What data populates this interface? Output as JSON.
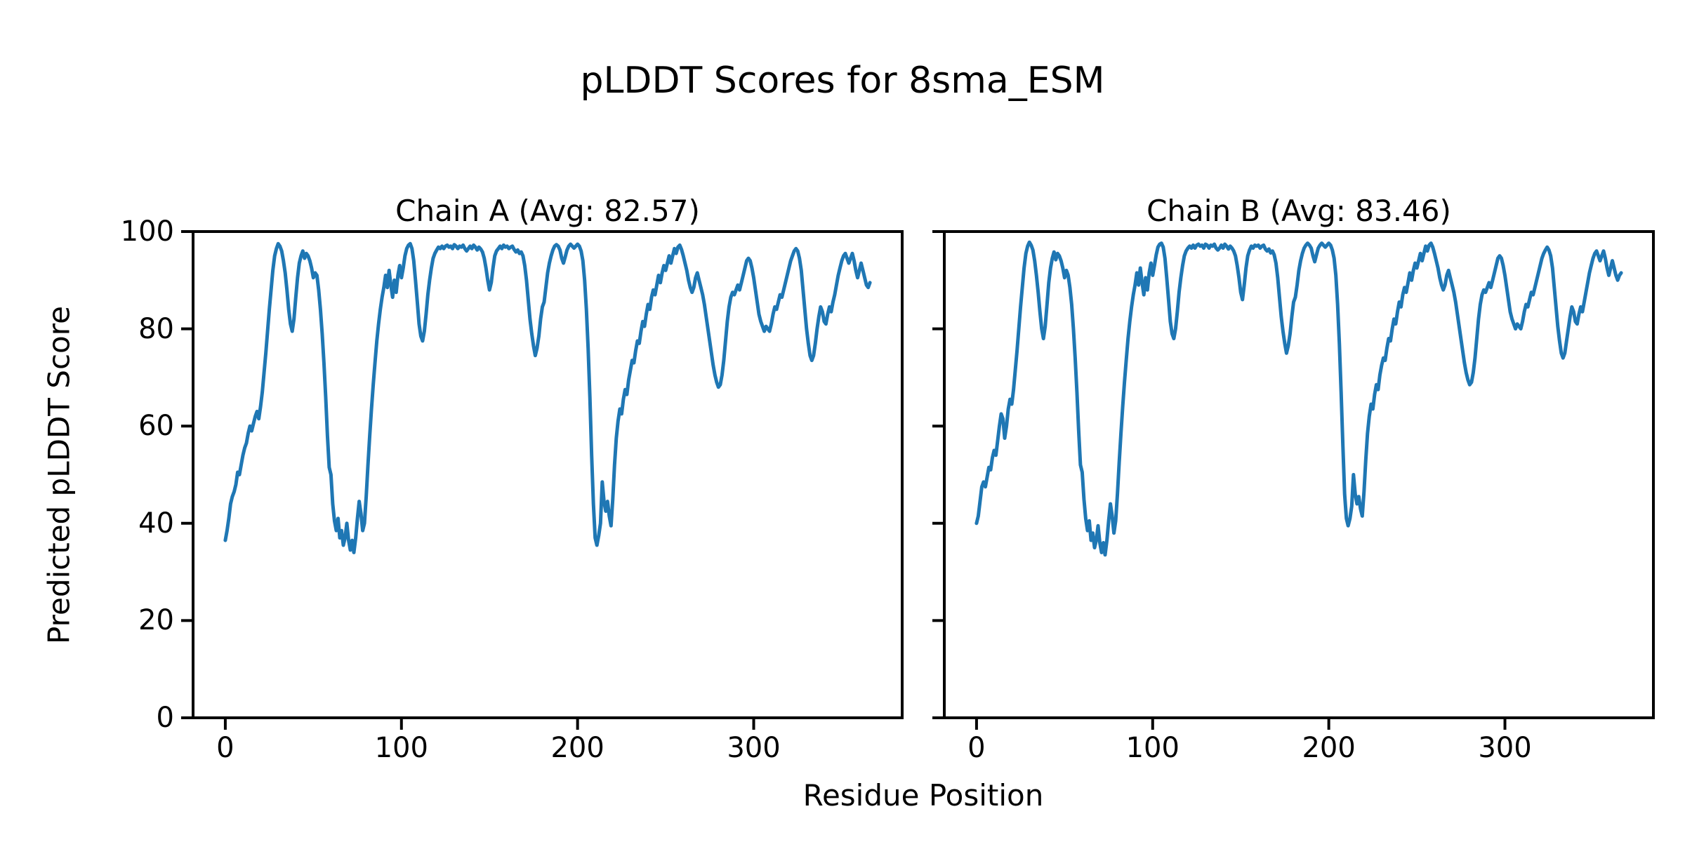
{
  "figure": {
    "title": "pLDDT Scores for 8sma_ESM"
  },
  "axes": {
    "xlabel": "Residue Position",
    "ylabel": "Predicted pLDDT Score"
  },
  "colors": {
    "line": "#1f77b4",
    "spine": "#000000",
    "text": "#000000",
    "background": "#ffffff"
  },
  "chart_data": [
    {
      "type": "line",
      "chain": "A",
      "title": "Chain A (Avg: 82.57)",
      "avg": 82.57,
      "xlabel": "Residue Position",
      "ylabel": "Predicted pLDDT Score",
      "xlim": [
        -18.3,
        384.3
      ],
      "ylim": [
        0,
        100
      ],
      "xticks": [
        0,
        100,
        200,
        300
      ],
      "yticks": [
        0,
        20,
        40,
        60,
        80,
        100
      ],
      "show_ytick_labels": true,
      "grid": false,
      "legend": "none",
      "x_start": 0,
      "x_step": 1,
      "values": [
        36.5,
        38.5,
        41,
        44,
        45.5,
        46.5,
        48,
        50.5,
        50,
        52,
        54,
        55.5,
        56.5,
        58.5,
        60,
        59,
        60.5,
        62,
        63,
        61.5,
        64,
        67,
        71,
        75,
        79.5,
        84,
        88,
        92,
        95,
        96.5,
        97.5,
        97,
        96,
        94,
        91.5,
        88,
        84,
        81,
        79.5,
        82,
        86.5,
        90.5,
        93.5,
        95,
        96,
        94.5,
        95.5,
        95,
        94,
        92.5,
        90.5,
        91.5,
        91,
        88,
        84,
        79,
        73,
        66,
        58,
        51.5,
        50,
        44,
        40.5,
        38.5,
        41,
        37,
        38.5,
        35.5,
        37,
        40,
        36.5,
        34.5,
        36.5,
        34,
        37,
        41,
        44.5,
        42,
        38.5,
        40,
        45.5,
        52,
        58,
        63.5,
        68.5,
        73,
        77.5,
        81,
        84,
        86.5,
        88.5,
        91,
        88.5,
        92,
        89,
        86.5,
        90,
        87.5,
        91,
        93,
        90.5,
        92.5,
        95,
        96.5,
        97.2,
        97.5,
        96.5,
        94,
        90,
        85.5,
        81,
        78.5,
        77.5,
        79.5,
        83,
        87,
        90,
        92.5,
        94.5,
        95.5,
        96.2,
        96.8,
        96.5,
        97,
        96.5,
        97,
        97.2,
        96.8,
        97,
        96.5,
        97.3,
        97,
        96.5,
        97,
        96.8,
        97.2,
        96.5,
        96,
        96.5,
        97,
        96.5,
        97.2,
        96.8,
        96.2,
        96.8,
        96.4,
        95.8,
        94.5,
        92.5,
        90,
        88,
        89.5,
        92.5,
        95,
        96,
        96.5,
        97,
        96.5,
        97.2,
        96.8,
        97,
        96.5,
        96.8,
        97,
        96.3,
        95.8,
        96.2,
        95.5,
        95.8,
        95,
        93,
        90,
        86,
        82,
        79,
        76.5,
        74.5,
        76,
        78.5,
        82,
        84.5,
        85.5,
        88.5,
        91.5,
        93.5,
        95,
        96.2,
        97,
        97.3,
        97,
        96.2,
        94.5,
        93.5,
        94.8,
        96.2,
        97,
        97.4,
        97,
        96.6,
        97,
        97.4,
        97,
        96,
        94,
        90,
        84,
        76,
        66,
        54,
        44,
        37,
        35.5,
        37.5,
        40,
        48.5,
        44.5,
        42.5,
        44.5,
        41.5,
        39.5,
        45,
        52,
        57.5,
        61,
        63.5,
        62.5,
        65.5,
        67.5,
        66.5,
        69.5,
        71.5,
        73.5,
        73,
        75.5,
        77.5,
        77,
        79.5,
        81.5,
        80.5,
        83,
        85,
        84,
        86.5,
        88,
        87,
        89,
        91,
        89.5,
        91.5,
        93,
        92,
        93.5,
        95,
        93.5,
        95,
        96.5,
        95.5,
        96.8,
        97.2,
        96.3,
        95,
        93.5,
        92,
        90,
        88.5,
        87.5,
        88.5,
        90.5,
        91.5,
        90,
        88.5,
        87,
        85,
        82.5,
        80,
        77.5,
        75,
        72.5,
        70.5,
        69,
        68,
        68.5,
        70.5,
        73.5,
        77.5,
        81.5,
        84.5,
        86.5,
        87.5,
        87,
        88,
        89,
        88,
        89.5,
        91,
        92.5,
        94,
        94.5,
        94,
        92.5,
        90.5,
        88,
        85.5,
        83,
        81.5,
        80.5,
        79.5,
        80.5,
        80,
        79.5,
        81,
        83,
        84.5,
        84,
        85.5,
        87,
        86.5,
        88,
        89.5,
        91,
        92.5,
        94,
        95,
        96,
        96.5,
        96,
        94.5,
        92,
        88,
        84,
        80,
        77,
        74.5,
        73.5,
        74.5,
        77,
        80,
        82.5,
        84.5,
        83.5,
        81.5,
        81,
        83,
        84.5,
        83.5,
        85.5,
        87,
        89,
        91,
        92.5,
        94,
        95,
        95.5,
        94.5,
        93.5,
        94.5,
        95.5,
        94,
        92,
        90.5,
        92,
        93.5,
        92,
        90.5,
        89,
        88.5,
        89.5
      ]
    },
    {
      "type": "line",
      "chain": "B",
      "title": "Chain B (Avg: 83.46)",
      "avg": 83.46,
      "xlabel": "Residue Position",
      "ylabel": "",
      "xlim": [
        -18.3,
        384.3
      ],
      "ylim": [
        0,
        100
      ],
      "xticks": [
        0,
        100,
        200,
        300
      ],
      "yticks": [
        0,
        20,
        40,
        60,
        80,
        100
      ],
      "show_ytick_labels": false,
      "grid": false,
      "legend": "none",
      "x_start": 0,
      "x_step": 1,
      "values": [
        40,
        41.5,
        44.5,
        47.5,
        48.5,
        47.5,
        49.5,
        51.5,
        51,
        53.5,
        55,
        54,
        57,
        60,
        62.5,
        61.5,
        57.5,
        60,
        63.5,
        65.5,
        64.5,
        67.5,
        71.5,
        75.5,
        80,
        84.5,
        88.5,
        92.5,
        95.5,
        97,
        97.8,
        97.2,
        96.2,
        94,
        91,
        87.5,
        83.5,
        80,
        78,
        80.5,
        85,
        89.5,
        92.5,
        94.5,
        95.8,
        94.2,
        95.5,
        95,
        94,
        92.5,
        90.5,
        92,
        91,
        88.5,
        85,
        80,
        74,
        67,
        59,
        52,
        50.5,
        45,
        41,
        38.5,
        40.5,
        36.5,
        38,
        35,
        36.5,
        39.5,
        36,
        34,
        36,
        33.5,
        36.5,
        40.5,
        44,
        41.5,
        38,
        40.5,
        46,
        52.5,
        58.5,
        64,
        69,
        73.5,
        78,
        81.5,
        84.5,
        87,
        89,
        91.5,
        89,
        92.5,
        89.5,
        87,
        90.5,
        88,
        91.5,
        93.5,
        91,
        93,
        95.2,
        96.8,
        97.4,
        97.6,
        96.8,
        94.5,
        90.5,
        86,
        81.5,
        79,
        78,
        80,
        83.5,
        87.5,
        90.5,
        93,
        95,
        96,
        96.6,
        97,
        96.6,
        97.2,
        96.6,
        97.2,
        97.4,
        97,
        97.2,
        96.6,
        97.4,
        97.2,
        96.6,
        97.2,
        97,
        97.4,
        96.6,
        96.2,
        96.6,
        97.2,
        96.6,
        97.4,
        97,
        96.4,
        97,
        96.6,
        96,
        95,
        93,
        90.5,
        87.5,
        86,
        89,
        92.5,
        95,
        96.2,
        97,
        96.6,
        97.2,
        97,
        97.2,
        96.6,
        97,
        97.2,
        96.4,
        96,
        96.4,
        95.6,
        96,
        95.2,
        93.5,
        90.5,
        86.5,
        82.5,
        79.5,
        77,
        75,
        76.5,
        79,
        82.5,
        85.5,
        86.5,
        89,
        92,
        94,
        95.5,
        96.6,
        97.2,
        97.6,
        97.2,
        96.6,
        95,
        93.8,
        95.2,
        96.6,
        97.2,
        97.6,
        97.2,
        96.8,
        97.2,
        97.6,
        97.2,
        96.2,
        94.5,
        91,
        85,
        77,
        67,
        56,
        46,
        41,
        39.5,
        41,
        43.5,
        50,
        46,
        44,
        45.5,
        43,
        41.5,
        46.5,
        53,
        58.5,
        62,
        64.5,
        63.5,
        66.5,
        68.5,
        67.5,
        70.5,
        72.5,
        74,
        73.5,
        76,
        78,
        77.5,
        80,
        82,
        81,
        83.5,
        85.5,
        84.5,
        87,
        88.5,
        87.5,
        89.5,
        91.5,
        90,
        92,
        93.5,
        92.5,
        94,
        95.5,
        94,
        95.5,
        97,
        96,
        97.2,
        97.6,
        96.8,
        95.5,
        94,
        92.5,
        90.5,
        89,
        88,
        89,
        91,
        92,
        90.5,
        89,
        87.5,
        85.5,
        83,
        80.5,
        78,
        75.5,
        73,
        71,
        69.5,
        68.5,
        69,
        71,
        74,
        78,
        82,
        85,
        87,
        88,
        87.5,
        88.5,
        89.5,
        88.5,
        90,
        91.5,
        93,
        94.5,
        95,
        94.5,
        93,
        91,
        88.5,
        86,
        83.5,
        82,
        81,
        80,
        81,
        80.5,
        80,
        81.5,
        83.5,
        85,
        84.5,
        86,
        87.5,
        87,
        88.5,
        90,
        91.5,
        93,
        94.5,
        95.5,
        96.2,
        96.8,
        96.2,
        95,
        92.5,
        88.5,
        84.5,
        80.5,
        77.5,
        75,
        74,
        75,
        77.5,
        80,
        82.5,
        84.5,
        83.5,
        81.5,
        81,
        83,
        84.5,
        83.5,
        85.5,
        87.5,
        89.5,
        91.5,
        93,
        94.5,
        95.5,
        96,
        95,
        94,
        95,
        96,
        94.5,
        92.5,
        91,
        92.5,
        94,
        92.5,
        91,
        90,
        91,
        91.5
      ]
    }
  ]
}
